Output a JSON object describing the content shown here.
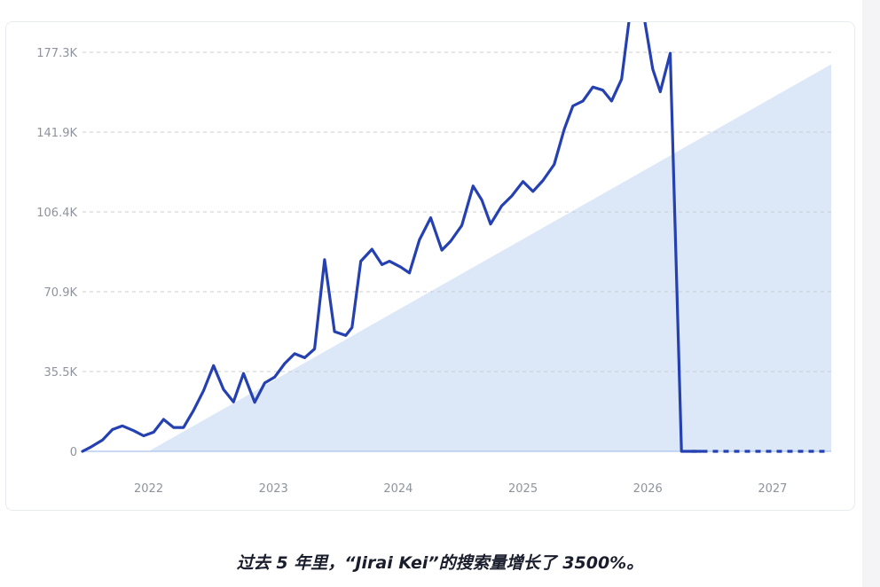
{
  "caption": "过去 5 年里，“Jirai Kei”的搜索量增长了 3500%。",
  "chart_data": {
    "type": "line",
    "y_ticks": [
      "0",
      "35.5K",
      "70.9K",
      "106.4K",
      "141.9K",
      "177.3K"
    ],
    "y_tick_values": [
      0,
      35466,
      70932,
      106398,
      141864,
      177330
    ],
    "x_ticks": [
      "2022",
      "2023",
      "2024",
      "2025",
      "2026",
      "2027"
    ],
    "x_tick_values": [
      2022.2,
      2023.2,
      2024.2,
      2025.2,
      2026.2,
      2027.2
    ],
    "ylim": [
      0,
      177330
    ],
    "xlim": [
      2021.67,
      2027.67
    ],
    "grid": true,
    "colors": {
      "line": "#2540b0",
      "trend_fill": "#dce8f8",
      "grid": "#c9ccd2",
      "axis": "#a9c4ea"
    },
    "trend": {
      "x": [
        2022.2,
        2027.67
      ],
      "y": [
        0,
        172000
      ]
    },
    "series": [
      {
        "style": "solid",
        "x": [
          2021.67,
          2021.73,
          2021.83,
          2021.91,
          2021.99,
          2022.08,
          2022.16,
          2022.24,
          2022.32,
          2022.4,
          2022.48,
          2022.56,
          2022.64,
          2022.72,
          2022.8,
          2022.88,
          2022.96,
          2023.05,
          2023.13,
          2023.21,
          2023.29,
          2023.37,
          2023.45,
          2023.53,
          2023.61,
          2023.69,
          2023.78,
          2023.83,
          2023.9,
          2023.99,
          2024.07,
          2024.13,
          2024.22,
          2024.29,
          2024.37,
          2024.46,
          2024.55,
          2024.62,
          2024.71,
          2024.8,
          2024.87,
          2024.94,
          2025.03,
          2025.11,
          2025.2,
          2025.28,
          2025.36,
          2025.45,
          2025.53,
          2025.6,
          2025.68,
          2025.76,
          2025.84,
          2025.91,
          2025.99,
          2026.07,
          2026.16,
          2026.24,
          2026.3,
          2026.38,
          2026.47,
          2026.55,
          2026.63
        ],
        "y": [
          0,
          1700,
          5000,
          9700,
          11300,
          9200,
          6900,
          8500,
          14200,
          10600,
          10600,
          18200,
          26900,
          38100,
          27500,
          22000,
          34600,
          21800,
          30400,
          33000,
          39000,
          43400,
          41600,
          45500,
          85200,
          53200,
          51500,
          55000,
          84500,
          89800,
          83000,
          84500,
          81900,
          79300,
          94000,
          103800,
          89400,
          93400,
          100400,
          117900,
          111700,
          101000,
          109100,
          113500,
          119900,
          115500,
          120400,
          127500,
          143100,
          153500,
          155700,
          161900,
          160500,
          155700,
          165400,
          200000,
          196500,
          169900,
          159800,
          176900,
          0,
          0,
          0
        ]
      },
      {
        "style": "dashed",
        "x": [
          2026.55,
          2026.63,
          2026.7,
          2026.76,
          2026.83,
          2026.9,
          2026.96,
          2027.02,
          2027.08,
          2027.15,
          2027.21,
          2027.27,
          2027.33,
          2027.4,
          2027.47,
          2027.55,
          2027.63
        ],
        "y": [
          0,
          0,
          0,
          0,
          0,
          0,
          0,
          0,
          0,
          0,
          0,
          0,
          0,
          0,
          0,
          0,
          0
        ]
      }
    ]
  }
}
